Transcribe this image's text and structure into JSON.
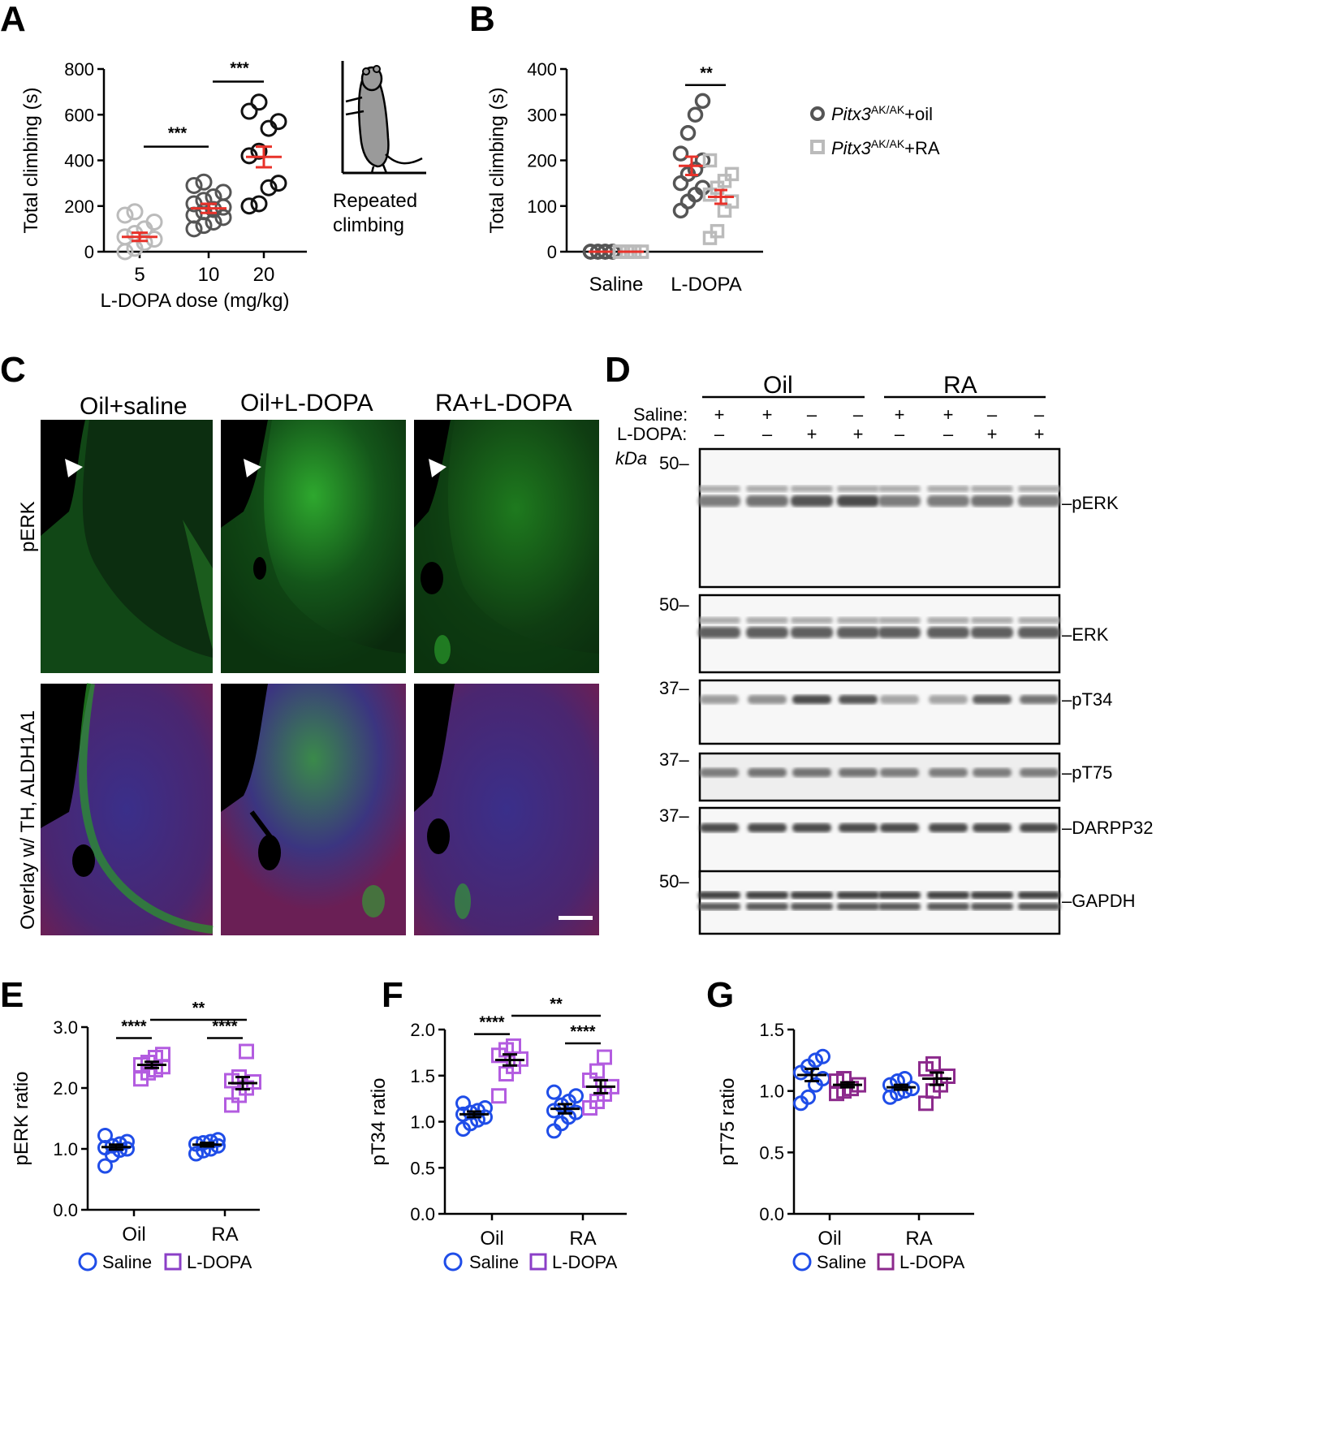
{
  "panels": {
    "A": "A",
    "B": "B",
    "C": "C",
    "D": "D",
    "E": "E",
    "F": "F",
    "G": "G"
  },
  "colors": {
    "grey_dark": "#555555",
    "grey_light": "#bbbbbb",
    "black": "#111111",
    "red": "#e8322a",
    "blue": "#1f4de8",
    "purple": "#8b3fc7",
    "purple_light": "#b35ce0",
    "purple_dark": "#8c2a8c",
    "green_tissue": "#1a6b1a",
    "overlay": "#4a2a7a"
  },
  "chart_data": [
    {
      "id": "A",
      "type": "scatter",
      "categories": [
        "5",
        "10",
        "20"
      ],
      "xlabel": "L-DOPA dose (mg/kg)",
      "ylabel": "Total climbing (s)",
      "ylim": [
        0,
        800
      ],
      "yticks": [
        0,
        200,
        400,
        600,
        800
      ],
      "series": [
        {
          "category": "5",
          "points": [
            0,
            15,
            40,
            55,
            65,
            80,
            100,
            130,
            160,
            175
          ],
          "mean": 65,
          "sem": 18,
          "marker": "circle",
          "color_key": "grey_light"
        },
        {
          "category": "10",
          "points": [
            100,
            115,
            130,
            150,
            160,
            175,
            185,
            195,
            210,
            225,
            240,
            260,
            290,
            305
          ],
          "mean": 190,
          "sem": 20,
          "marker": "circle",
          "color_key": "grey_dark"
        },
        {
          "category": "20",
          "points": [
            200,
            210,
            280,
            300,
            420,
            440,
            540,
            570,
            615,
            655
          ],
          "mean": 415,
          "sem": 45,
          "marker": "circle",
          "color_key": "black"
        }
      ],
      "significance": [
        {
          "from": "5",
          "to": "10",
          "label": "***",
          "y": 460
        },
        {
          "from": "10",
          "to": "20",
          "label": "***",
          "y": 745
        }
      ],
      "inset_caption": [
        "Repeated",
        "climbing"
      ]
    },
    {
      "id": "B",
      "type": "scatter",
      "categories": [
        "Saline",
        "L-DOPA"
      ],
      "ylabel": "Total climbing (s)",
      "ylim": [
        0,
        400
      ],
      "yticks": [
        0,
        100,
        200,
        300,
        400
      ],
      "series": [
        {
          "name": "Pitx3AK/AK+oil",
          "name_main": "Pitx3",
          "name_sup": "AK/AK",
          "name_tail": "+oil",
          "marker": "circle",
          "color_key": "grey_dark",
          "points_by_cat": {
            "Saline": [
              0,
              0,
              0,
              0,
              0,
              0,
              0,
              0,
              0,
              0,
              0,
              0
            ],
            "L-DOPA": [
              90,
              110,
              125,
              140,
              150,
              170,
              180,
              200,
              215,
              260,
              300,
              330
            ]
          },
          "mean": {
            "Saline": 0,
            "L-DOPA": 188
          },
          "sem": {
            "Saline": 0,
            "L-DOPA": 20
          }
        },
        {
          "name": "Pitx3AK/AK+RA",
          "name_main": "Pitx3",
          "name_sup": "AK/AK",
          "name_tail": "+RA",
          "marker": "square",
          "color_key": "grey_light",
          "points_by_cat": {
            "Saline": [
              0,
              0,
              0,
              0,
              0,
              0,
              0,
              0,
              0,
              0
            ],
            "L-DOPA": [
              30,
              45,
              90,
              110,
              125,
              140,
              155,
              170,
              200
            ]
          },
          "mean": {
            "Saline": 0,
            "L-DOPA": 120
          },
          "sem": {
            "Saline": 0,
            "L-DOPA": 15
          }
        }
      ],
      "significance": [
        {
          "category": "L-DOPA",
          "label": "**",
          "y": 365
        }
      ]
    },
    {
      "id": "E",
      "type": "scatter",
      "categories": [
        "Oil",
        "RA"
      ],
      "ylabel": "pERK ratio",
      "ylim": [
        0,
        3
      ],
      "yticks": [
        "0.0",
        "1.0",
        "2.0",
        "3.0"
      ],
      "series": [
        {
          "name": "Saline",
          "marker": "circle",
          "color_key": "blue",
          "points_by_cat": {
            "Oil": [
              0.72,
              0.9,
              0.98,
              1.0,
              1.02,
              1.05,
              1.08,
              1.12,
              1.22
            ],
            "RA": [
              0.92,
              0.97,
              1.0,
              1.05,
              1.08,
              1.1,
              1.12,
              1.15
            ]
          },
          "mean": {
            "Oil": 1.03,
            "RA": 1.07
          },
          "sem": {
            "Oil": 0.04,
            "RA": 0.03
          }
        },
        {
          "name": "L-DOPA",
          "marker": "square",
          "color_key": "purple_light",
          "points_by_cat": {
            "Oil": [
              2.15,
              2.25,
              2.3,
              2.35,
              2.38,
              2.42,
              2.5,
              2.55
            ],
            "RA": [
              1.72,
              1.88,
              2.0,
              2.1,
              2.12,
              2.18,
              2.6
            ]
          },
          "mean": {
            "Oil": 2.38,
            "RA": 2.08
          },
          "sem": {
            "Oil": 0.05,
            "RA": 0.1
          }
        }
      ],
      "significance": [
        {
          "category": "Oil",
          "label": "****",
          "y": 2.82
        },
        {
          "category": "RA",
          "label": "****",
          "y": 2.82
        },
        {
          "between": [
            "Oil",
            "RA"
          ],
          "label": "**",
          "y": 3.12
        }
      ]
    },
    {
      "id": "F",
      "type": "scatter",
      "categories": [
        "Oil",
        "RA"
      ],
      "ylabel": "pT34 ratio",
      "ylim": [
        0,
        2
      ],
      "yticks": [
        "0.0",
        "0.5",
        "1.0",
        "1.5",
        "2.0"
      ],
      "series": [
        {
          "name": "Saline",
          "marker": "circle",
          "color_key": "blue",
          "points_by_cat": {
            "Oil": [
              0.92,
              0.98,
              1.02,
              1.05,
              1.08,
              1.1,
              1.12,
              1.15,
              1.2
            ],
            "RA": [
              0.9,
              0.98,
              1.05,
              1.1,
              1.12,
              1.18,
              1.22,
              1.28,
              1.32
            ]
          },
          "mean": {
            "Oil": 1.08,
            "RA": 1.14
          },
          "sem": {
            "Oil": 0.03,
            "RA": 0.05
          }
        },
        {
          "name": "L-DOPA",
          "marker": "square",
          "color_key": "purple_light",
          "points_by_cat": {
            "Oil": [
              1.28,
              1.52,
              1.6,
              1.68,
              1.72,
              1.78,
              1.82
            ],
            "RA": [
              1.15,
              1.22,
              1.3,
              1.38,
              1.45,
              1.55,
              1.7
            ]
          },
          "mean": {
            "Oil": 1.67,
            "RA": 1.38
          },
          "sem": {
            "Oil": 0.06,
            "RA": 0.07
          }
        }
      ],
      "significance": [
        {
          "category": "Oil",
          "label": "****",
          "y": 1.95
        },
        {
          "category": "RA",
          "label": "****",
          "y": 1.85
        },
        {
          "between": [
            "Oil",
            "RA"
          ],
          "label": "**",
          "y": 2.15
        }
      ]
    },
    {
      "id": "G",
      "type": "scatter",
      "categories": [
        "Oil",
        "RA"
      ],
      "ylabel": "pT75 ratio",
      "ylim": [
        0,
        1.5
      ],
      "yticks": [
        "0.0",
        "0.5",
        "1.0",
        "1.5"
      ],
      "series": [
        {
          "name": "Saline",
          "marker": "circle",
          "color_key": "blue",
          "points_by_cat": {
            "Oil": [
              0.9,
              0.95,
              1.05,
              1.1,
              1.15,
              1.2,
              1.25,
              1.28
            ],
            "RA": [
              0.95,
              0.98,
              1.0,
              1.02,
              1.05,
              1.08,
              1.1
            ]
          },
          "mean": {
            "Oil": 1.13,
            "RA": 1.03
          },
          "sem": {
            "Oil": 0.05,
            "RA": 0.02
          }
        },
        {
          "name": "L-DOPA",
          "marker": "square",
          "color_key": "purple_dark",
          "points_by_cat": {
            "Oil": [
              0.98,
              1.0,
              1.02,
              1.05,
              1.08,
              1.1
            ],
            "RA": [
              0.9,
              1.0,
              1.05,
              1.12,
              1.18,
              1.22
            ]
          },
          "mean": {
            "Oil": 1.05,
            "RA": 1.1
          },
          "sem": {
            "Oil": 0.02,
            "RA": 0.05
          }
        }
      ],
      "significance": []
    }
  ],
  "panelC": {
    "columns": [
      "Oil+saline",
      "Oil+L-DOPA",
      "RA+L-DOPA"
    ],
    "rows": [
      "pERK",
      "Overlay w/ TH, ALDH1A1"
    ]
  },
  "panelD": {
    "groups": [
      "Oil",
      "RA"
    ],
    "row_labels": [
      "Saline:",
      "L-DOPA:"
    ],
    "saline": [
      "+",
      "+",
      "–",
      "–",
      "+",
      "+",
      "–",
      "–"
    ],
    "ldopa": [
      "–",
      "–",
      "+",
      "+",
      "–",
      "–",
      "+",
      "+"
    ],
    "unit": "kDa",
    "blots": [
      {
        "label": "–pERK",
        "marker": "50–",
        "intensity": [
          0.55,
          0.6,
          0.75,
          0.8,
          0.55,
          0.55,
          0.6,
          0.55
        ]
      },
      {
        "label": "–ERK",
        "marker": "50–",
        "intensity": [
          0.7,
          0.7,
          0.7,
          0.7,
          0.7,
          0.7,
          0.7,
          0.7
        ]
      },
      {
        "label": "–pT34",
        "marker": "37–",
        "intensity": [
          0.4,
          0.45,
          0.8,
          0.75,
          0.35,
          0.35,
          0.7,
          0.6
        ]
      },
      {
        "label": "–pT75",
        "marker": "37–",
        "intensity": [
          0.55,
          0.6,
          0.6,
          0.6,
          0.55,
          0.55,
          0.55,
          0.55
        ]
      },
      {
        "label": "–DARPP32",
        "marker": "37–",
        "intensity": [
          0.8,
          0.8,
          0.8,
          0.8,
          0.8,
          0.8,
          0.8,
          0.8
        ]
      },
      {
        "label": "–GAPDH",
        "marker": "50–",
        "intensity": [
          0.85,
          0.85,
          0.85,
          0.85,
          0.85,
          0.85,
          0.85,
          0.85
        ]
      }
    ]
  }
}
